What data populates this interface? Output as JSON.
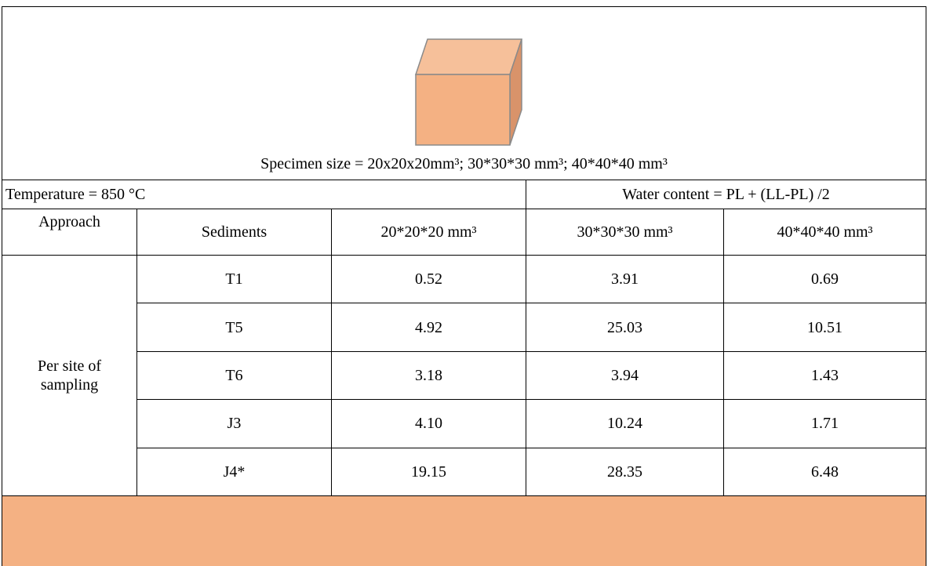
{
  "caption": "Specimen size = 20x20x20mm³; 30*30*30 mm³; 40*40*40 mm³",
  "conditions": {
    "temperature": "Temperature = 850 °C",
    "water_content": "Water content = PL + (LL-PL) /2"
  },
  "table": {
    "header": [
      "Approach",
      "Sediments",
      "20*20*20 mm³",
      "30*30*30 mm³",
      "40*40*40 mm³"
    ],
    "approach": "Per site of sampling",
    "rows": [
      [
        "T1",
        "0.52",
        "3.91",
        "0.69"
      ],
      [
        "T5",
        "4.92",
        "25.03",
        "10.51"
      ],
      [
        "T6",
        "3.18",
        "3.94",
        "1.43"
      ],
      [
        "J3",
        "4.10",
        "10.24",
        "1.71"
      ],
      [
        "J4*",
        "19.15",
        "28.35",
        "6.48"
      ]
    ]
  }
}
